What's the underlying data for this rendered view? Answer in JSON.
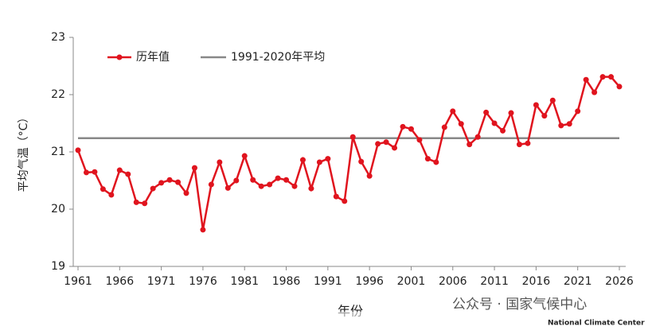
{
  "chart_data": {
    "type": "line",
    "ylabel": "平均气温（°C）",
    "xlabel": "年份",
    "x": [
      1961,
      1962,
      1963,
      1964,
      1965,
      1966,
      1967,
      1968,
      1969,
      1970,
      1971,
      1972,
      1973,
      1974,
      1975,
      1976,
      1977,
      1978,
      1979,
      1980,
      1981,
      1982,
      1983,
      1984,
      1985,
      1986,
      1987,
      1988,
      1989,
      1990,
      1991,
      1992,
      1993,
      1994,
      1995,
      1996,
      1997,
      1998,
      1999,
      2000,
      2001,
      2002,
      2003,
      2004,
      2005,
      2006,
      2007,
      2008,
      2009,
      2010,
      2011,
      2012,
      2013,
      2014,
      2015,
      2016,
      2017,
      2018,
      2019,
      2020,
      2021,
      2022,
      2023,
      2024,
      2025,
      2026
    ],
    "series": [
      {
        "name": "历年值",
        "color": "#e0141e",
        "values": [
          21.03,
          20.64,
          20.65,
          20.35,
          20.25,
          20.68,
          20.61,
          20.12,
          20.1,
          20.36,
          20.46,
          20.51,
          20.47,
          20.28,
          20.72,
          19.64,
          20.43,
          20.82,
          20.37,
          20.5,
          20.93,
          20.51,
          20.4,
          20.43,
          20.54,
          20.51,
          20.4,
          20.86,
          20.36,
          20.82,
          20.88,
          20.22,
          20.14,
          21.26,
          20.83,
          20.58,
          21.14,
          21.17,
          21.07,
          21.44,
          21.4,
          21.21,
          20.88,
          20.82,
          21.43,
          21.71,
          21.49,
          21.13,
          21.26,
          21.69,
          21.5,
          21.37,
          21.68,
          21.13,
          21.15,
          21.82,
          21.63,
          21.9,
          21.46,
          21.49,
          21.71,
          22.26,
          22.04,
          22.31,
          22.31,
          22.14
        ]
      }
    ],
    "reference_line": {
      "name": "1991-2020年平均",
      "value": 21.24,
      "color": "#888888"
    },
    "xlim": [
      1961,
      2026
    ],
    "xticks": [
      1961,
      1966,
      1971,
      1976,
      1981,
      1986,
      1991,
      1996,
      2001,
      2006,
      2011,
      2016,
      2021,
      2026
    ],
    "ylim": [
      19,
      23
    ],
    "yticks": [
      19,
      20,
      21,
      22,
      23
    ],
    "grid": false
  },
  "watermark": {
    "text": "公众号 · 国家气候中心",
    "subtext": "National Climate Center"
  }
}
